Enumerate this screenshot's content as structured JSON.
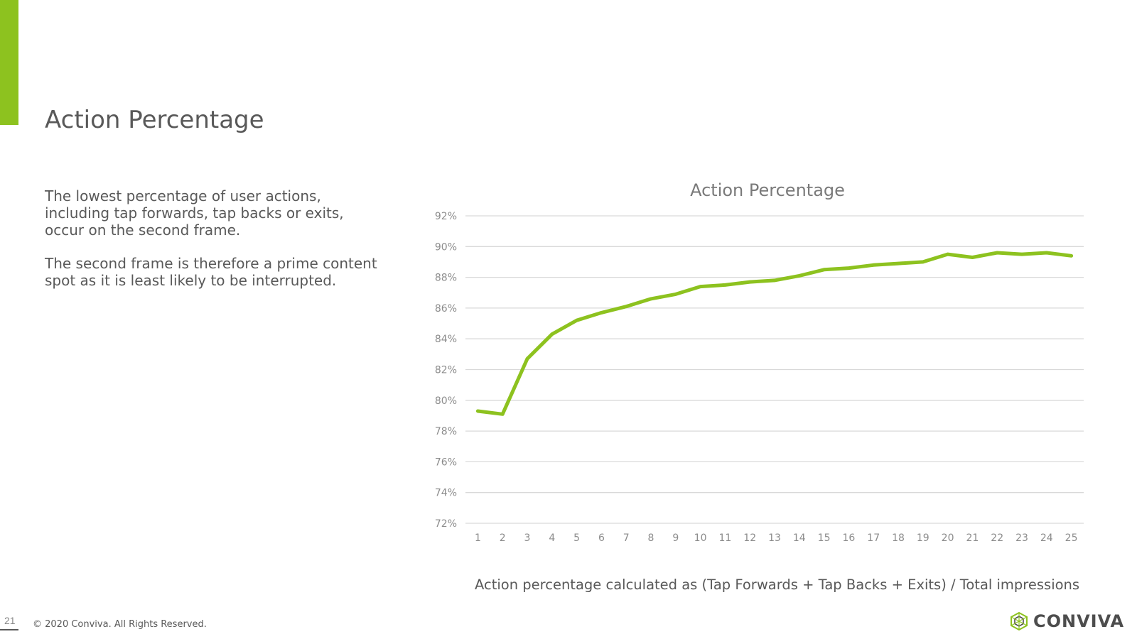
{
  "slide": {
    "title": "Action Percentage",
    "paragraphs": [
      "The lowest percentage of user actions, including tap forwards, tap backs or exits, occur on the second frame.",
      "The second frame is therefore a prime content spot as it is least likely to be interrupted."
    ],
    "caption": "Action percentage calculated as (Tap Forwards + Tap Backs + Exits) / Total impressions",
    "page_number": "21",
    "copyright": "© 2020 Conviva. All Rights Reserved.",
    "logo_text": "CONVIVA"
  },
  "colors": {
    "accent": "#8dc21f",
    "line": "#8dc21f",
    "grid": "#d9d9d9",
    "tick_text": "#8c8c8c"
  },
  "icons": {
    "logo": "conviva-logo-icon"
  },
  "chart_data": {
    "type": "line",
    "title": "Action Percentage",
    "xlabel": "",
    "ylabel": "",
    "categories": [
      "1",
      "2",
      "3",
      "4",
      "5",
      "6",
      "7",
      "8",
      "9",
      "10",
      "11",
      "12",
      "13",
      "14",
      "15",
      "16",
      "17",
      "18",
      "19",
      "20",
      "21",
      "22",
      "23",
      "24",
      "25"
    ],
    "series": [
      {
        "values": [
          79.3,
          79.1,
          82.7,
          84.3,
          85.2,
          85.7,
          86.1,
          86.6,
          86.9,
          87.4,
          87.5,
          87.7,
          87.8,
          88.1,
          88.5,
          88.6,
          88.8,
          88.9,
          89.0,
          89.5,
          89.3,
          89.6,
          89.5,
          89.6,
          89.4
        ]
      }
    ],
    "ylim": [
      72,
      92
    ],
    "yticks": [
      72,
      74,
      76,
      78,
      80,
      82,
      84,
      86,
      88,
      90,
      92
    ],
    "ytick_format": "%",
    "grid": true,
    "legend": "none"
  }
}
